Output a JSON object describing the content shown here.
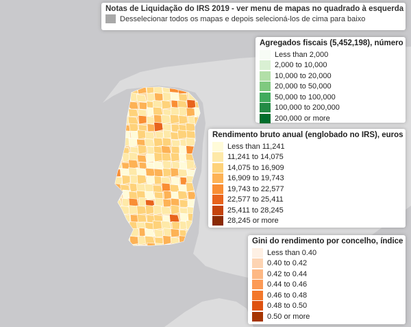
{
  "header": {
    "title": "Notas de Liquidação do IRS 2019 - ver menu de mapas no quadrado à esquerda",
    "subtitle": "Desselecionar todos os mapas e depois selecioná-los de cima para baixo"
  },
  "legends": {
    "agregados": {
      "title": "Agregados fiscais (5,452,198), número",
      "items": [
        {
          "label": "Less than 2,000",
          "color": "#f7fcf5"
        },
        {
          "label": "2,000 to 10,000",
          "color": "#d9f0d3"
        },
        {
          "label": "10,000 to 20,000",
          "color": "#b2dfa8"
        },
        {
          "label": "20,000 to 50,000",
          "color": "#7fc97f"
        },
        {
          "label": "50,000 to 100,000",
          "color": "#41ab5d"
        },
        {
          "label": "100,000 to 200,000",
          "color": "#238b45"
        },
        {
          "label": "200,000 or more",
          "color": "#006d2c"
        }
      ]
    },
    "rendimento": {
      "title": "Rendimento bruto anual (englobado no IRS), euros",
      "items": [
        {
          "label": "Less than 11,241",
          "color": "#fffbd9"
        },
        {
          "label": "11,241 to 14,075",
          "color": "#fee9a8"
        },
        {
          "label": "14,075 to 16,909",
          "color": "#fed27a"
        },
        {
          "label": "16,909 to 19,743",
          "color": "#fdb255"
        },
        {
          "label": "19,743 to 22,577",
          "color": "#f98e34"
        },
        {
          "label": "22,577 to 25,411",
          "color": "#e8631c"
        },
        {
          "label": "25,411 to 28,245",
          "color": "#c4430c"
        },
        {
          "label": "28,245 or more",
          "color": "#8a2a04"
        }
      ]
    },
    "gini": {
      "title": "Gini do rendimento por concelho, índice",
      "items": [
        {
          "label": "Less than 0.40",
          "color": "#fef0e4"
        },
        {
          "label": "0.40 to 0.42",
          "color": "#fdd4b3"
        },
        {
          "label": "0.42 to 0.44",
          "color": "#fdb884"
        },
        {
          "label": "0.44 to 0.46",
          "color": "#fc9a56"
        },
        {
          "label": "0.46 to 0.48",
          "color": "#f3782c"
        },
        {
          "label": "0.48 to 0.50",
          "color": "#de5210"
        },
        {
          "label": "0.50 or more",
          "color": "#a63603"
        }
      ]
    }
  },
  "colors": {
    "sea": "#c9c9cc",
    "land": "#e0e0e0",
    "border": "#ffffff"
  }
}
